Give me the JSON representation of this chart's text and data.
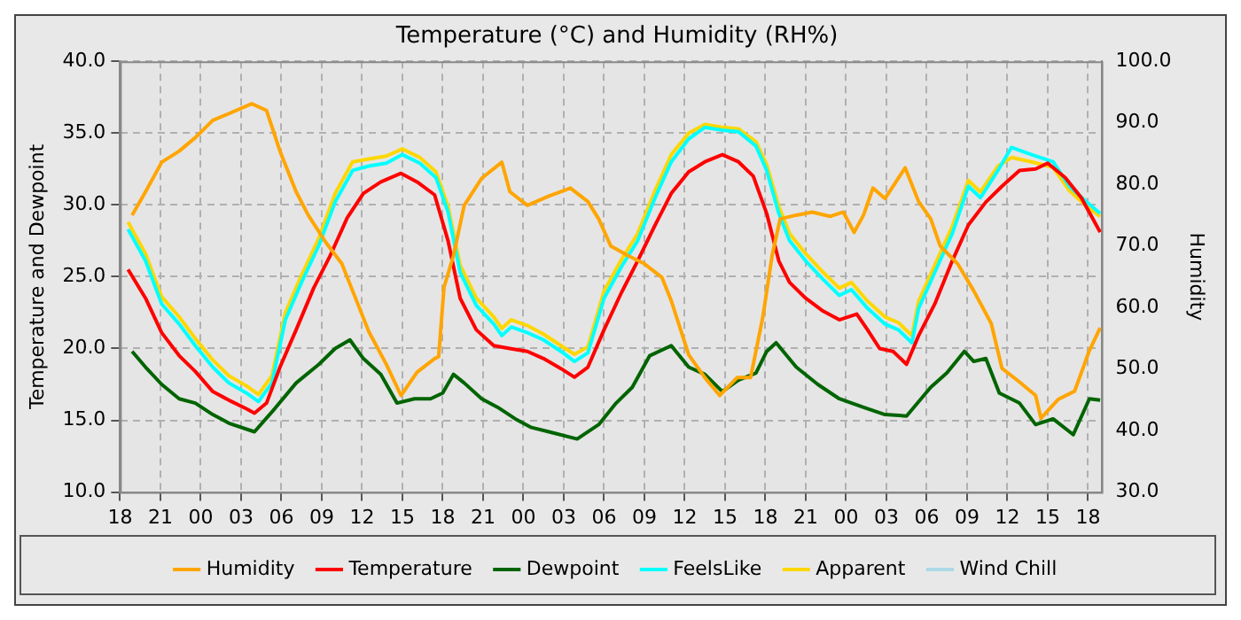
{
  "chart_data": {
    "type": "line",
    "title": "Temperature (°C) and Humidity (RH%)",
    "ylabel": "Temperature and Dewpoint",
    "y2label": "Humidity",
    "xlim": [
      18,
      91
    ],
    "xticks": [
      {
        "value": 18,
        "label": "18"
      },
      {
        "value": 21,
        "label": "21"
      },
      {
        "value": 24,
        "label": "00"
      },
      {
        "value": 27,
        "label": "03"
      },
      {
        "value": 30,
        "label": "06"
      },
      {
        "value": 33,
        "label": "09"
      },
      {
        "value": 36,
        "label": "12"
      },
      {
        "value": 39,
        "label": "15"
      },
      {
        "value": 42,
        "label": "18"
      },
      {
        "value": 45,
        "label": "21"
      },
      {
        "value": 48,
        "label": "00"
      },
      {
        "value": 51,
        "label": "03"
      },
      {
        "value": 54,
        "label": "06"
      },
      {
        "value": 57,
        "label": "09"
      },
      {
        "value": 60,
        "label": "12"
      },
      {
        "value": 63,
        "label": "15"
      },
      {
        "value": 66,
        "label": "18"
      },
      {
        "value": 69,
        "label": "21"
      },
      {
        "value": 72,
        "label": "00"
      },
      {
        "value": 75,
        "label": "03"
      },
      {
        "value": 78,
        "label": "06"
      },
      {
        "value": 81,
        "label": "09"
      },
      {
        "value": 84,
        "label": "12"
      },
      {
        "value": 87,
        "label": "15"
      },
      {
        "value": 90,
        "label": "18"
      }
    ],
    "ylim": [
      10,
      40
    ],
    "yticks": [
      {
        "value": 10,
        "label": "10.0"
      },
      {
        "value": 15,
        "label": "15.0"
      },
      {
        "value": 20,
        "label": "20.0"
      },
      {
        "value": 25,
        "label": "25.0"
      },
      {
        "value": 30,
        "label": "30.0"
      },
      {
        "value": 35,
        "label": "35.0"
      },
      {
        "value": 40,
        "label": "40.0"
      }
    ],
    "y2lim": [
      30,
      100
    ],
    "y2ticks": [
      {
        "value": 30,
        "label": "30.0"
      },
      {
        "value": 40,
        "label": "40.0"
      },
      {
        "value": 50,
        "label": "50.0"
      },
      {
        "value": 60,
        "label": "60.0"
      },
      {
        "value": 70,
        "label": "70.0"
      },
      {
        "value": 80,
        "label": "80.0"
      },
      {
        "value": 90,
        "label": "90.0"
      },
      {
        "value": 100,
        "label": "100.0"
      }
    ],
    "grid": true,
    "legend": "bottom",
    "series": [
      {
        "name": "Humidity",
        "color": "#ffa500",
        "axis": "y2",
        "x": [
          18.9,
          19.9,
          21.1,
          22.4,
          23.6,
          24.9,
          26.1,
          27.8,
          28.9,
          29.9,
          31.1,
          32,
          33.3,
          34.5,
          35.3,
          36.5,
          37.8,
          38.9,
          40.1,
          41.4,
          41.7,
          42.1,
          42.8,
          43.6,
          44.9,
          46.4,
          47,
          48.3,
          49.9,
          51.5,
          52.8,
          53.6,
          54.5,
          55.8,
          57,
          58.3,
          59,
          60.3,
          61.5,
          62.6,
          63.9,
          64.9,
          65.8,
          66.5,
          67.1,
          68.3,
          69.5,
          70.8,
          71.8,
          72.6,
          73.3,
          74,
          74.9,
          76.4,
          77.4,
          78.3,
          79,
          80.3,
          81.5,
          82.8,
          83.6,
          84.9,
          86.1,
          86.5,
          87.8,
          89,
          90.1,
          90.9
        ],
        "values": [
          75.0,
          78.8,
          83.6,
          85.4,
          87.6,
          90.4,
          91.5,
          93.1,
          92.0,
          85.4,
          78.8,
          75.0,
          70.6,
          67.1,
          62.7,
          56.1,
          50.8,
          45.7,
          49.5,
          51.7,
          52.0,
          63.3,
          68.4,
          76.6,
          81.0,
          83.6,
          78.8,
          76.6,
          78.1,
          79.4,
          77.2,
          74.4,
          70.0,
          68.4,
          67.1,
          64.9,
          61.1,
          52.3,
          48.6,
          45.7,
          48.6,
          48.6,
          58.3,
          68.4,
          74.4,
          75.0,
          75.5,
          74.8,
          75.5,
          72.2,
          75.0,
          79.4,
          77.7,
          82.7,
          77.2,
          74.4,
          70.0,
          67.1,
          62.7,
          57.4,
          50.1,
          47.9,
          45.7,
          42.0,
          45.1,
          46.4,
          53.0,
          56.7
        ]
      },
      {
        "name": "Temperature",
        "color": "#ff0000",
        "x": [
          18.6,
          19.9,
          21.1,
          22.4,
          23.6,
          24.9,
          26.1,
          27.4,
          28,
          28.9,
          29.9,
          31.1,
          32.4,
          33.6,
          34.9,
          36.1,
          37.4,
          38.9,
          40.1,
          41.4,
          42.4,
          43.3,
          44.5,
          45.8,
          47,
          48.3,
          49.5,
          50.8,
          51.8,
          52.8,
          54,
          55.3,
          56.5,
          57.8,
          59,
          60.3,
          61.5,
          62.8,
          64,
          65.1,
          66.1,
          67,
          67.8,
          69,
          70.3,
          71.5,
          72.8,
          73.6,
          74.5,
          75.5,
          76.5,
          77.4,
          78.6,
          79.9,
          81.1,
          82.4,
          83.6,
          84.9,
          86.1,
          87,
          88.3,
          89.5,
          90.9
        ],
        "values": [
          25.5,
          23.5,
          21.1,
          19.5,
          18.4,
          17.0,
          16.4,
          15.8,
          15.5,
          16.2,
          18.7,
          21.3,
          24.2,
          26.4,
          29.1,
          30.8,
          31.6,
          32.2,
          31.6,
          30.7,
          27.5,
          23.5,
          21.3,
          20.2,
          20.0,
          19.8,
          19.3,
          18.6,
          18.0,
          18.7,
          21.3,
          23.9,
          26.1,
          28.6,
          30.8,
          32.3,
          33.0,
          33.5,
          33.0,
          32.0,
          29.4,
          26.1,
          24.6,
          23.5,
          22.6,
          22.0,
          22.4,
          21.3,
          20.0,
          19.8,
          18.9,
          20.9,
          23.1,
          26.1,
          28.6,
          30.2,
          31.3,
          32.4,
          32.5,
          32.9,
          31.9,
          30.5,
          28.1
        ]
      },
      {
        "name": "Dewpoint",
        "color": "#006400",
        "x": [
          18.9,
          19.9,
          21.1,
          22.4,
          23.6,
          24.9,
          26.1,
          28,
          29.5,
          31.1,
          32.8,
          34,
          35.1,
          36.1,
          37.4,
          38.6,
          39.9,
          41.1,
          42,
          42.8,
          43.6,
          44.9,
          46.1,
          47.4,
          48.6,
          49.9,
          52,
          53.6,
          54.9,
          56.1,
          57.4,
          59,
          60.3,
          61.5,
          62.8,
          64,
          65.3,
          66.1,
          66.8,
          68.3,
          69.9,
          71.5,
          73.3,
          74.9,
          76.5,
          78.3,
          79.5,
          80.8,
          81.5,
          82.4,
          83.4,
          84.9,
          86.1,
          87.4,
          88.9,
          90.1,
          90.9
        ],
        "values": [
          19.8,
          18.7,
          17.5,
          16.5,
          16.2,
          15.4,
          14.8,
          14.2,
          15.8,
          17.6,
          18.9,
          20.0,
          20.6,
          19.3,
          18.2,
          16.2,
          16.5,
          16.5,
          16.9,
          18.2,
          17.6,
          16.5,
          15.9,
          15.1,
          14.5,
          14.2,
          13.7,
          14.7,
          16.2,
          17.3,
          19.5,
          20.2,
          18.7,
          18.2,
          17.0,
          17.8,
          18.3,
          19.8,
          20.4,
          18.7,
          17.5,
          16.5,
          15.9,
          15.4,
          15.3,
          17.3,
          18.3,
          19.8,
          19.1,
          19.3,
          16.9,
          16.2,
          14.7,
          15.1,
          14.0,
          16.5,
          16.4
        ]
      },
      {
        "name": "FeelsLike",
        "color": "#00ffff",
        "x": [
          18.6,
          19.9,
          21.1,
          22.4,
          23.6,
          24.9,
          26.1,
          27.4,
          28.3,
          29.3,
          30.3,
          31.5,
          32.8,
          34,
          35.3,
          36.5,
          37.8,
          39,
          40.3,
          41.5,
          42.4,
          43.3,
          44.5,
          45.8,
          46.4,
          47.1,
          48.3,
          49.5,
          50.8,
          51.8,
          52.8,
          54,
          55.3,
          56.5,
          57.8,
          59,
          60.3,
          61.5,
          62.8,
          64,
          65.3,
          66.1,
          67,
          67.8,
          69,
          70.3,
          71.5,
          72.4,
          73.6,
          74.9,
          75.9,
          76.9,
          77.4,
          78.6,
          79.9,
          81.1,
          82,
          83.3,
          84.3,
          85.8,
          87.4,
          88.6,
          89.9,
          90.9
        ],
        "values": [
          28.3,
          26.1,
          23.1,
          21.7,
          20.2,
          18.7,
          17.6,
          16.9,
          16.3,
          17.6,
          22.0,
          24.6,
          27.2,
          30.2,
          32.4,
          32.7,
          32.9,
          33.5,
          32.9,
          31.9,
          29.5,
          25.3,
          23.0,
          21.7,
          20.9,
          21.5,
          21.1,
          20.6,
          19.8,
          19.1,
          19.7,
          23.5,
          25.7,
          27.5,
          30.5,
          33.0,
          34.6,
          35.4,
          35.2,
          35.1,
          34.1,
          32.4,
          29.4,
          27.5,
          26.1,
          24.8,
          23.7,
          24.1,
          22.8,
          21.7,
          21.3,
          20.4,
          22.8,
          25.3,
          28.0,
          31.3,
          30.5,
          32.4,
          34.0,
          33.5,
          33.0,
          31.3,
          30.2,
          29.4
        ]
      },
      {
        "name": "Apparent",
        "color": "#ffd700",
        "x": [
          18.6,
          19.9,
          21.1,
          22.4,
          23.6,
          24.9,
          26.1,
          27.4,
          28.3,
          29.3,
          30.3,
          31.5,
          32.8,
          34,
          35.3,
          36.5,
          37.8,
          39,
          40.3,
          41.5,
          42.4,
          43.3,
          44.5,
          45.8,
          46.4,
          47.1,
          48.3,
          49.5,
          50.8,
          51.8,
          52.8,
          54,
          55.3,
          56.5,
          57.8,
          59,
          60.3,
          61.5,
          62.8,
          64,
          65.3,
          66.1,
          67,
          67.8,
          69,
          70.3,
          71.5,
          72.4,
          73.6,
          74.9,
          75.9,
          76.9,
          77.4,
          78.6,
          79.9,
          81.1,
          82,
          83.3,
          84.3,
          85.8,
          87.4,
          88.6,
          89.9,
          90.9
        ],
        "values": [
          28.8,
          26.6,
          23.6,
          22.2,
          20.7,
          19.2,
          18.1,
          17.4,
          16.8,
          18.1,
          22.5,
          25.1,
          27.7,
          30.8,
          33.0,
          33.2,
          33.4,
          33.9,
          33.3,
          32.3,
          29.9,
          25.8,
          23.5,
          22.2,
          21.4,
          22.0,
          21.6,
          21.0,
          20.2,
          19.6,
          20.1,
          24.0,
          26.2,
          28.0,
          31.0,
          33.5,
          35.0,
          35.6,
          35.4,
          35.3,
          34.4,
          32.8,
          29.9,
          28.0,
          26.6,
          25.3,
          24.2,
          24.6,
          23.3,
          22.2,
          21.8,
          20.9,
          23.3,
          25.8,
          28.5,
          31.7,
          30.9,
          32.7,
          33.3,
          33.0,
          32.6,
          31.0,
          29.9,
          29.2
        ]
      },
      {
        "name": "Wind Chill",
        "color": "#add8e6"
      }
    ]
  }
}
